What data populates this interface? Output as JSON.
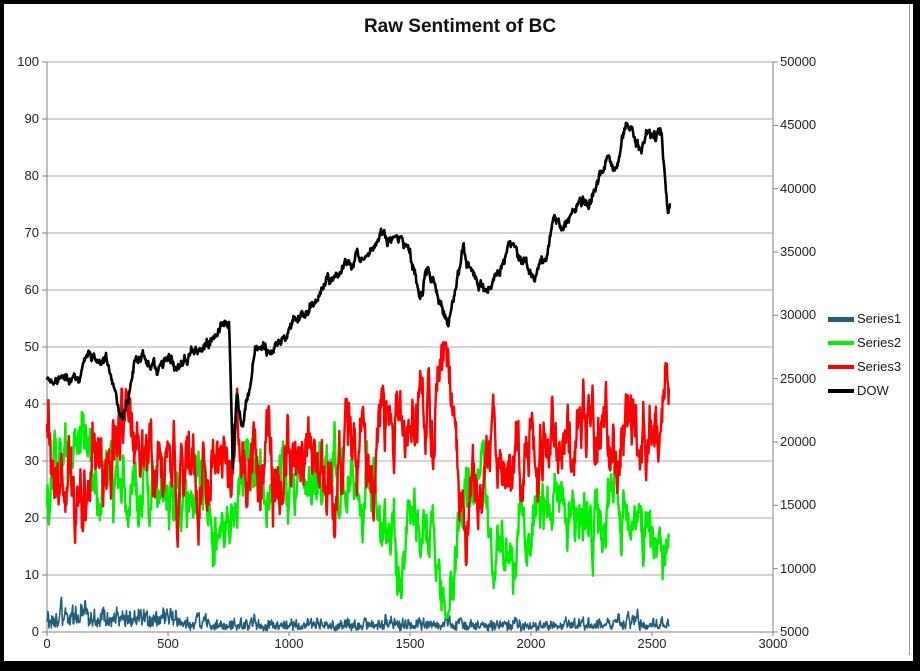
{
  "window": {
    "background": "#FFFFFF",
    "frame_color": "#000000"
  },
  "chart_data": {
    "type": "line",
    "title": "Raw Sentiment of BC",
    "grid": "horizontal-major",
    "legend_position": "right",
    "x_axis": {
      "min": 0,
      "max": 3000,
      "tick_labels": [
        "0",
        "500",
        "1000",
        "1500",
        "2000",
        "2500",
        "3000"
      ]
    },
    "y_axis_left": {
      "min": 0,
      "max": 100,
      "tick_labels": [
        "0",
        "10",
        "20",
        "30",
        "40",
        "50",
        "60",
        "70",
        "80",
        "90",
        "100"
      ]
    },
    "y_axis_right": {
      "min": 5000,
      "max": 50000,
      "tick_labels": [
        "5000",
        "10000",
        "15000",
        "20000",
        "25000",
        "30000",
        "35000",
        "40000",
        "45000",
        "50000"
      ]
    },
    "style": {
      "grid_color": "#ABABAB",
      "axis_color": "#808080",
      "text_color": "#222222"
    },
    "series": [
      {
        "name": "Series1",
        "axis": "left",
        "color": "#205E7C",
        "stroke_width": 1.6,
        "x_end": 2570,
        "mode": "spike",
        "noise": {
          "decay": 0.8,
          "drive": 1.5,
          "walk_amp": 1,
          "jitter": 0.9,
          "min": 0.25,
          "max": 8.6
        },
        "trend_keyframes": [
          [
            0,
            2.3
          ],
          [
            80,
            2.6
          ],
          [
            150,
            3.1
          ],
          [
            220,
            2.3
          ],
          [
            300,
            2.6
          ],
          [
            360,
            3.0
          ],
          [
            430,
            2.6
          ],
          [
            500,
            2.9
          ],
          [
            550,
            2.0
          ],
          [
            600,
            1.2
          ],
          [
            700,
            1.3
          ],
          [
            800,
            1.4
          ],
          [
            900,
            1.2
          ],
          [
            1000,
            1.3
          ],
          [
            1200,
            1.3
          ],
          [
            1400,
            1.4
          ],
          [
            1600,
            1.3
          ],
          [
            1800,
            1.4
          ],
          [
            2000,
            1.3
          ],
          [
            2200,
            1.4
          ],
          [
            2400,
            1.5
          ],
          [
            2570,
            1.2
          ]
        ]
      },
      {
        "name": "Series2",
        "axis": "left",
        "color": "#00EE00",
        "stroke_width": 2.4,
        "x_end": 2570,
        "anti": {
          "of": "Series3",
          "k": 0.55
        },
        "noise": {
          "decay": 0.85,
          "drive": 1.6,
          "walk_amp": 3.2,
          "jitter": 3.0,
          "min": 2.5,
          "max": 46
        },
        "trend_keyframes": [
          [
            0,
            25
          ],
          [
            40,
            30
          ],
          [
            90,
            29
          ],
          [
            150,
            31
          ],
          [
            200,
            27
          ],
          [
            260,
            29
          ],
          [
            310,
            22
          ],
          [
            360,
            29
          ],
          [
            420,
            26
          ],
          [
            470,
            29
          ],
          [
            520,
            27
          ],
          [
            600,
            25
          ],
          [
            650,
            26
          ],
          [
            700,
            18
          ],
          [
            760,
            24
          ],
          [
            820,
            26
          ],
          [
            880,
            27
          ],
          [
            950,
            26
          ],
          [
            1020,
            26
          ],
          [
            1100,
            25
          ],
          [
            1180,
            26
          ],
          [
            1260,
            25
          ],
          [
            1340,
            23
          ],
          [
            1420,
            17
          ],
          [
            1455,
            10
          ],
          [
            1500,
            19
          ],
          [
            1550,
            20
          ],
          [
            1600,
            14
          ],
          [
            1655,
            7
          ],
          [
            1700,
            15
          ],
          [
            1725,
            27
          ],
          [
            1760,
            25
          ],
          [
            1820,
            22
          ],
          [
            1880,
            17
          ],
          [
            1910,
            13
          ],
          [
            1950,
            19
          ],
          [
            2020,
            22
          ],
          [
            2090,
            21
          ],
          [
            2160,
            22
          ],
          [
            2230,
            20
          ],
          [
            2300,
            21
          ],
          [
            2380,
            21
          ],
          [
            2450,
            19
          ],
          [
            2500,
            17
          ],
          [
            2530,
            13
          ],
          [
            2570,
            16
          ]
        ]
      },
      {
        "name": "Series3",
        "axis": "left",
        "color": "#FF0000",
        "stroke_width": 2.4,
        "x_end": 2570,
        "noise": {
          "decay": 0.85,
          "drive": 1.6,
          "walk_amp": 5.2,
          "jitter": 3.0,
          "min": 11,
          "max": 50.8
        },
        "trend_keyframes": [
          [
            0,
            36
          ],
          [
            40,
            26
          ],
          [
            90,
            28
          ],
          [
            150,
            27
          ],
          [
            200,
            30
          ],
          [
            260,
            28
          ],
          [
            310,
            37
          ],
          [
            360,
            28
          ],
          [
            420,
            31
          ],
          [
            470,
            26
          ],
          [
            520,
            28
          ],
          [
            600,
            28
          ],
          [
            650,
            26
          ],
          [
            700,
            31
          ],
          [
            760,
            28
          ],
          [
            820,
            30
          ],
          [
            880,
            27
          ],
          [
            950,
            29
          ],
          [
            1020,
            28
          ],
          [
            1100,
            30
          ],
          [
            1180,
            28
          ],
          [
            1260,
            30
          ],
          [
            1340,
            32
          ],
          [
            1420,
            35
          ],
          [
            1500,
            36
          ],
          [
            1560,
            38
          ],
          [
            1620,
            42
          ],
          [
            1655,
            46
          ],
          [
            1690,
            36
          ],
          [
            1725,
            17
          ],
          [
            1760,
            24
          ],
          [
            1820,
            29
          ],
          [
            1880,
            31
          ],
          [
            1950,
            32
          ],
          [
            2020,
            30
          ],
          [
            2090,
            32
          ],
          [
            2160,
            33
          ],
          [
            2230,
            32
          ],
          [
            2300,
            33
          ],
          [
            2380,
            34
          ],
          [
            2450,
            35
          ],
          [
            2510,
            36
          ],
          [
            2545,
            38
          ],
          [
            2570,
            41
          ]
        ]
      },
      {
        "name": "DOW",
        "axis": "right",
        "color": "#000000",
        "stroke_width": 2.6,
        "x_end": 2574,
        "noise": {
          "decay": 0.9,
          "drive": 1.2,
          "walk_amp": 430,
          "jitter": 360,
          "min": 17500,
          "max": 45400
        },
        "trend_keyframes": [
          [
            0,
            24800
          ],
          [
            120,
            25250
          ],
          [
            240,
            26700
          ],
          [
            315,
            21900
          ],
          [
            370,
            26400
          ],
          [
            450,
            25900
          ],
          [
            550,
            26400
          ],
          [
            650,
            27700
          ],
          [
            700,
            28400
          ],
          [
            752,
            29500
          ],
          [
            768,
            18500
          ],
          [
            785,
            24100
          ],
          [
            805,
            21400
          ],
          [
            860,
            27500
          ],
          [
            930,
            26800
          ],
          [
            1000,
            28600
          ],
          [
            1060,
            30000
          ],
          [
            1120,
            31550
          ],
          [
            1180,
            32900
          ],
          [
            1240,
            33800
          ],
          [
            1300,
            34700
          ],
          [
            1350,
            35500
          ],
          [
            1395,
            36650
          ],
          [
            1430,
            35750
          ],
          [
            1465,
            36270
          ],
          [
            1500,
            35150
          ],
          [
            1541,
            31460
          ],
          [
            1570,
            33350
          ],
          [
            1610,
            31550
          ],
          [
            1657,
            28850
          ],
          [
            1690,
            32000
          ],
          [
            1719,
            34600
          ],
          [
            1750,
            33350
          ],
          [
            1777,
            33050
          ],
          [
            1818,
            32000
          ],
          [
            1870,
            33800
          ],
          [
            1926,
            35600
          ],
          [
            1970,
            34400
          ],
          [
            2017,
            32680
          ],
          [
            2060,
            34500
          ],
          [
            2091,
            37260
          ],
          [
            2130,
            36720
          ],
          [
            2180,
            38300
          ],
          [
            2244,
            39100
          ],
          [
            2280,
            40400
          ],
          [
            2318,
            41900
          ],
          [
            2340,
            40700
          ],
          [
            2400,
            45050
          ],
          [
            2430,
            44300
          ],
          [
            2455,
            43650
          ],
          [
            2490,
            45180
          ],
          [
            2515,
            43930
          ],
          [
            2540,
            44370
          ],
          [
            2566,
            38080
          ],
          [
            2574,
            38520
          ]
        ]
      }
    ]
  }
}
